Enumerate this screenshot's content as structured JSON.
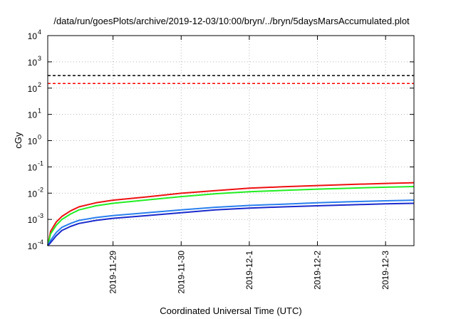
{
  "chart_data": {
    "type": "line",
    "title": "/data/run/goesPlots/archive/2019-12-03/10:00/bryn/../bryn/5daysMarsAccumulated.plot",
    "xlabel": "Coordinated Universal Time (UTC)",
    "ylabel": "cGy",
    "yscale": "log",
    "ylim": [
      0.0001,
      10000
    ],
    "xlim": [
      "2019-11-28T01:00",
      "2019-12-03T10:00"
    ],
    "grid": true,
    "y_ticks": [
      {
        "base": "10",
        "exp": "-4",
        "value": 0.0001
      },
      {
        "base": "10",
        "exp": "-3",
        "value": 0.001
      },
      {
        "base": "10",
        "exp": "-2",
        "value": 0.01
      },
      {
        "base": "10",
        "exp": "-1",
        "value": 0.1
      },
      {
        "base": "10",
        "exp": "0",
        "value": 1
      },
      {
        "base": "10",
        "exp": "1",
        "value": 10
      },
      {
        "base": "10",
        "exp": "2",
        "value": 100
      },
      {
        "base": "10",
        "exp": "3",
        "value": 1000
      },
      {
        "base": "10",
        "exp": "4",
        "value": 10000
      }
    ],
    "x_ticks": [
      {
        "label": "2019-11-29",
        "value": "2019-11-29T00:00"
      },
      {
        "label": "2019-11-30",
        "value": "2019-11-30T00:00"
      },
      {
        "label": "2019-12-1",
        "value": "2019-12-01T00:00"
      },
      {
        "label": "2019-12-2",
        "value": "2019-12-02T00:00"
      },
      {
        "label": "2019-12-3",
        "value": "2019-12-03T00:00"
      }
    ],
    "reference_lines": [
      {
        "value": 300,
        "color": "#000000",
        "style": "dashed"
      },
      {
        "value": 150,
        "color": "#ff0000",
        "style": "dashed"
      }
    ],
    "series": [
      {
        "color": "#ee1111",
        "points": [
          [
            "2019-11-28T01:00",
            0.0001
          ],
          [
            "2019-11-28T02:00",
            0.00035
          ],
          [
            "2019-11-28T04:00",
            0.0008
          ],
          [
            "2019-11-28T06:00",
            0.0013
          ],
          [
            "2019-11-28T09:00",
            0.0021
          ],
          [
            "2019-11-28T12:00",
            0.003
          ],
          [
            "2019-11-28T18:00",
            0.0043
          ],
          [
            "2019-11-29T00:00",
            0.0054
          ],
          [
            "2019-11-29T12:00",
            0.0072
          ],
          [
            "2019-11-30T00:00",
            0.0099
          ],
          [
            "2019-11-30T12:00",
            0.0125
          ],
          [
            "2019-12-01T00:00",
            0.0155
          ],
          [
            "2019-12-01T12:00",
            0.0175
          ],
          [
            "2019-12-02T00:00",
            0.0195
          ],
          [
            "2019-12-02T12:00",
            0.0215
          ],
          [
            "2019-12-03T00:00",
            0.0235
          ],
          [
            "2019-12-03T10:00",
            0.025
          ]
        ]
      },
      {
        "color": "#22ee22",
        "points": [
          [
            "2019-11-28T01:00",
            0.0001
          ],
          [
            "2019-11-28T02:00",
            0.00028
          ],
          [
            "2019-11-28T04:00",
            0.0006
          ],
          [
            "2019-11-28T06:00",
            0.001
          ],
          [
            "2019-11-28T09:00",
            0.0016
          ],
          [
            "2019-11-28T12:00",
            0.0023
          ],
          [
            "2019-11-28T18:00",
            0.0033
          ],
          [
            "2019-11-29T00:00",
            0.0041
          ],
          [
            "2019-11-29T12:00",
            0.0055
          ],
          [
            "2019-11-30T00:00",
            0.0074
          ],
          [
            "2019-11-30T12:00",
            0.0095
          ],
          [
            "2019-12-01T00:00",
            0.0113
          ],
          [
            "2019-12-01T12:00",
            0.0127
          ],
          [
            "2019-12-02T00:00",
            0.0142
          ],
          [
            "2019-12-02T12:00",
            0.0155
          ],
          [
            "2019-12-03T00:00",
            0.0168
          ],
          [
            "2019-12-03T10:00",
            0.0178
          ]
        ]
      },
      {
        "color": "#2a80ee",
        "points": [
          [
            "2019-11-28T01:00",
            0.0001
          ],
          [
            "2019-11-28T02:00",
            0.00016
          ],
          [
            "2019-11-28T04:00",
            0.00032
          ],
          [
            "2019-11-28T06:00",
            0.0005
          ],
          [
            "2019-11-28T09:00",
            0.0007
          ],
          [
            "2019-11-28T12:00",
            0.00092
          ],
          [
            "2019-11-28T18:00",
            0.00118
          ],
          [
            "2019-11-29T00:00",
            0.0014
          ],
          [
            "2019-11-29T12:00",
            0.0018
          ],
          [
            "2019-11-30T00:00",
            0.0023
          ],
          [
            "2019-11-30T12:00",
            0.0029
          ],
          [
            "2019-12-01T00:00",
            0.0034
          ],
          [
            "2019-12-01T12:00",
            0.0038
          ],
          [
            "2019-12-02T00:00",
            0.0043
          ],
          [
            "2019-12-02T12:00",
            0.0047
          ],
          [
            "2019-12-03T00:00",
            0.0051
          ],
          [
            "2019-12-03T10:00",
            0.0054
          ]
        ]
      },
      {
        "color": "#1a2acc",
        "points": [
          [
            "2019-11-28T01:00",
            0.0001
          ],
          [
            "2019-11-28T02:00",
            0.00013
          ],
          [
            "2019-11-28T04:00",
            0.00024
          ],
          [
            "2019-11-28T06:00",
            0.00038
          ],
          [
            "2019-11-28T09:00",
            0.00054
          ],
          [
            "2019-11-28T12:00",
            0.0007
          ],
          [
            "2019-11-28T18:00",
            0.00092
          ],
          [
            "2019-11-29T00:00",
            0.0011
          ],
          [
            "2019-11-29T12:00",
            0.0014
          ],
          [
            "2019-11-30T00:00",
            0.0018
          ],
          [
            "2019-11-30T12:00",
            0.0023
          ],
          [
            "2019-12-01T00:00",
            0.0027
          ],
          [
            "2019-12-01T12:00",
            0.003
          ],
          [
            "2019-12-02T00:00",
            0.0033
          ],
          [
            "2019-12-02T12:00",
            0.0036
          ],
          [
            "2019-12-03T00:00",
            0.0039
          ],
          [
            "2019-12-03T10:00",
            0.0041
          ]
        ]
      }
    ]
  }
}
